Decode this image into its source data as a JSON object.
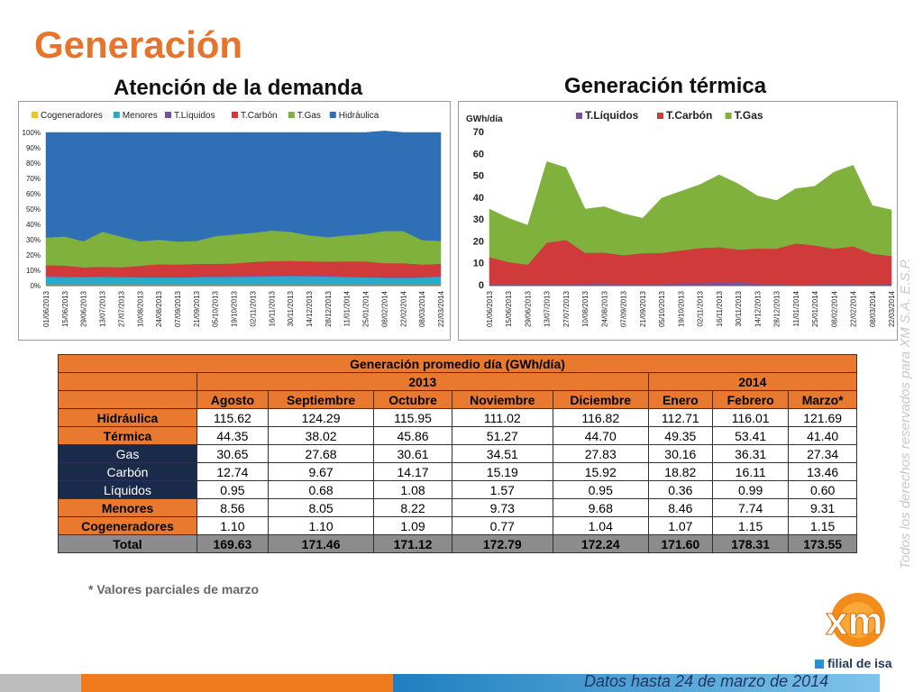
{
  "slide": {
    "title": "Generación",
    "sub_left": "Atención de la demanda",
    "sub_right": "Generación térmica",
    "footnote": "* Valores parciales de marzo",
    "side_text": "Todos los derechos reservados para XM S.A. E.S.P.",
    "bottom_text": "Datos hasta 24 de marzo de 2014",
    "logo_text": "xm",
    "filial_text": "filial de isa",
    "colors": {
      "accent": "#e8732a",
      "navy": "#1a2a4a",
      "table_orange": "#e8792e",
      "total_gray": "#8c8c8c"
    }
  },
  "chart_data": [
    {
      "type": "area",
      "title": "",
      "stacked": "percent",
      "legend": "top",
      "x_ticks": [
        "01/06/2013",
        "15/06/2013",
        "29/06/2013",
        "13/07/2013",
        "27/07/2013",
        "10/08/2013",
        "24/08/2013",
        "07/09/2013",
        "21/09/2013",
        "05/10/2013",
        "19/10/2013",
        "02/11/2013",
        "16/11/2013",
        "30/11/2013",
        "14/12/2013",
        "28/12/2013",
        "11/01/2014",
        "25/01/2014",
        "08/02/2014",
        "22/02/2014",
        "08/03/2014",
        "22/03/2014"
      ],
      "y_ticks": [
        "0%",
        "10%",
        "20%",
        "30%",
        "40%",
        "50%",
        "60%",
        "70%",
        "80%",
        "90%",
        "100%"
      ],
      "ylim": [
        0,
        100
      ],
      "series": [
        {
          "name": "Cogeneradores",
          "color": "#f1c232",
          "values": [
            0.6,
            0.6,
            0.6,
            0.6,
            0.6,
            0.6,
            0.6,
            0.6,
            0.6,
            0.6,
            0.6,
            0.6,
            0.6,
            0.6,
            0.6,
            0.6,
            0.6,
            0.6,
            0.6,
            0.6,
            0.6,
            0.6
          ]
        },
        {
          "name": "Menores",
          "color": "#2aa9c8",
          "values": [
            5.3,
            5.1,
            5.0,
            5.2,
            5.0,
            4.9,
            4.8,
            4.7,
            5.0,
            5.1,
            5.2,
            5.3,
            5.6,
            5.7,
            5.6,
            5.5,
            5.1,
            4.9,
            4.6,
            4.5,
            4.8,
            5.4
          ]
        },
        {
          "name": "T.Líquidos",
          "color": "#7a4fa3",
          "values": [
            0.5,
            0.4,
            0.4,
            0.5,
            0.4,
            0.5,
            0.6,
            0.5,
            0.6,
            0.6,
            0.7,
            0.6,
            0.8,
            0.9,
            0.7,
            0.6,
            0.2,
            0.3,
            0.5,
            0.6,
            0.4,
            0.3
          ]
        },
        {
          "name": "T.Carbón",
          "color": "#d03a3a",
          "values": [
            7,
            7,
            6,
            6,
            6,
            7,
            8,
            8,
            8,
            8,
            8,
            9,
            9,
            9,
            9,
            9,
            10,
            10,
            9,
            9,
            8,
            8
          ]
        },
        {
          "name": "T.Gas",
          "color": "#7fb13c",
          "values": [
            18,
            19,
            17,
            23,
            20,
            16,
            16,
            15,
            15,
            18,
            19,
            19,
            20,
            19,
            17,
            16,
            17,
            18,
            21,
            21,
            16,
            15
          ]
        },
        {
          "name": "Hidráulica",
          "color": "#2f6fb5",
          "values": [
            68.6,
            67.9,
            71.0,
            64.7,
            68.0,
            71.0,
            70.0,
            71.2,
            70.8,
            67.7,
            66.5,
            65.5,
            64.0,
            64.8,
            67.1,
            68.3,
            67.1,
            66.2,
            65.3,
            64.3,
            70.2,
            70.7
          ]
        }
      ]
    },
    {
      "type": "area",
      "title": "",
      "stacked": "absolute",
      "legend": "top",
      "ylabel": "GWh/día",
      "x_ticks": [
        "01/06/2013",
        "15/06/2013",
        "29/06/2013",
        "13/07/2013",
        "27/07/2013",
        "10/08/2013",
        "24/08/2013",
        "07/09/2013",
        "21/09/2013",
        "05/10/2013",
        "19/10/2013",
        "02/11/2013",
        "16/11/2013",
        "30/11/2013",
        "14/12/2013",
        "28/12/2013",
        "11/01/2014",
        "25/01/2014",
        "08/02/2014",
        "22/02/2014",
        "08/03/2014",
        "22/03/2014"
      ],
      "y_ticks": [
        "0",
        "10",
        "20",
        "30",
        "40",
        "50",
        "60",
        "70"
      ],
      "ylim": [
        0,
        70
      ],
      "series": [
        {
          "name": "T.Líquidos",
          "color": "#7a4fa3",
          "values": [
            1.0,
            0.8,
            0.6,
            0.7,
            0.9,
            1.0,
            1.1,
            0.9,
            0.8,
            1.0,
            1.1,
            1.2,
            1.6,
            1.5,
            1.0,
            0.9,
            0.3,
            0.4,
            0.9,
            1.0,
            0.6,
            0.6
          ]
        },
        {
          "name": "T.Carbón",
          "color": "#d03a3a",
          "values": [
            12,
            10,
            9,
            19,
            20,
            14,
            14,
            13,
            14,
            14,
            15,
            16,
            16,
            15,
            16,
            16,
            19,
            18,
            16,
            17,
            14,
            13
          ]
        },
        {
          "name": "T.Gas",
          "color": "#7fb13c",
          "values": [
            22,
            20,
            18,
            37,
            33,
            20,
            21,
            19,
            16,
            25,
            27,
            29,
            33,
            30,
            24,
            22,
            25,
            27,
            35,
            37,
            22,
            21
          ]
        }
      ]
    }
  ],
  "table": {
    "title": "Generación promedio día (GWh/día)",
    "years": [
      "2013",
      "2014"
    ],
    "months": [
      "Agosto",
      "Septiembre",
      "Octubre",
      "Noviembre",
      "Diciembre",
      "Enero",
      "Febrero",
      "Marzo*"
    ],
    "rows": [
      {
        "label": "Hidráulica",
        "values": [
          "115.62",
          "124.29",
          "115.95",
          "111.02",
          "116.82",
          "112.71",
          "116.01",
          "121.69"
        ]
      },
      {
        "label": "Térmica",
        "values": [
          "44.35",
          "38.02",
          "45.86",
          "51.27",
          "44.70",
          "49.35",
          "53.41",
          "41.40"
        ]
      },
      {
        "label": "Gas",
        "values": [
          "30.65",
          "27.68",
          "30.61",
          "34.51",
          "27.83",
          "30.16",
          "36.31",
          "27.34"
        ]
      },
      {
        "label": "Carbón",
        "values": [
          "12.74",
          "9.67",
          "14.17",
          "15.19",
          "15.92",
          "18.82",
          "16.11",
          "13.46"
        ]
      },
      {
        "label": "Líquidos",
        "values": [
          "0.95",
          "0.68",
          "1.08",
          "1.57",
          "0.95",
          "0.36",
          "0.99",
          "0.60"
        ]
      },
      {
        "label": "Menores",
        "values": [
          "8.56",
          "8.05",
          "8.22",
          "9.73",
          "9.68",
          "8.46",
          "7.74",
          "9.31"
        ]
      },
      {
        "label": "Cogeneradores",
        "values": [
          "1.10",
          "1.10",
          "1.09",
          "0.77",
          "1.04",
          "1.07",
          "1.15",
          "1.15"
        ]
      },
      {
        "label": "Total",
        "values": [
          "169.63",
          "171.46",
          "171.12",
          "172.79",
          "172.24",
          "171.60",
          "178.31",
          "173.55"
        ]
      }
    ]
  }
}
